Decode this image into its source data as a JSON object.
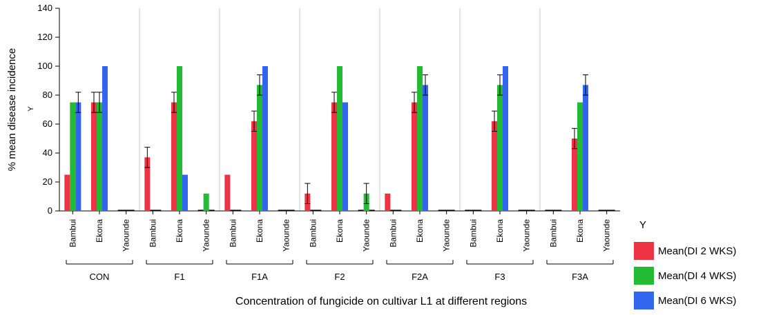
{
  "chart_data": {
    "type": "bar",
    "title": "",
    "xlabel": "Concentration of fungicide on cultivar L1 at different regions",
    "ylabel": "% mean disease incidence",
    "y_inner_label": "Y",
    "ylim": [
      0,
      140
    ],
    "yticks": [
      0,
      20,
      40,
      60,
      80,
      100,
      120,
      140
    ],
    "grid": "vertical separators between groups",
    "legend_position": "bottom-right",
    "legend_title": "Y",
    "groups": [
      "CON",
      "F1",
      "F1A",
      "F2",
      "F2A",
      "F3",
      "F3A"
    ],
    "categories": [
      "Bambui",
      "Ekona",
      "Yaounde"
    ],
    "series": [
      {
        "name": "Mean(DI 2 WKS)",
        "color": "#ee3344",
        "values": [
          [
            25,
            75,
            0
          ],
          [
            37,
            75,
            0
          ],
          [
            25,
            62,
            0
          ],
          [
            12,
            75,
            0
          ],
          [
            12,
            75,
            0
          ],
          [
            0,
            62,
            0
          ],
          [
            0,
            50,
            0
          ]
        ],
        "errors": [
          [
            0,
            7,
            0
          ],
          [
            7,
            7,
            0
          ],
          [
            0,
            7,
            0
          ],
          [
            7,
            7,
            0
          ],
          [
            0,
            7,
            0
          ],
          [
            0,
            7,
            0
          ],
          [
            0,
            7,
            0
          ]
        ]
      },
      {
        "name": "Mean(DI 4 WKS)",
        "color": "#22bb33",
        "values": [
          [
            75,
            75,
            0
          ],
          [
            0,
            100,
            12
          ],
          [
            0,
            87,
            0
          ],
          [
            0,
            100,
            12
          ],
          [
            0,
            100,
            0
          ],
          [
            0,
            87,
            0
          ],
          [
            0,
            75,
            0
          ]
        ],
        "errors": [
          [
            0,
            7,
            0
          ],
          [
            0,
            0,
            0
          ],
          [
            0,
            7,
            0
          ],
          [
            0,
            0,
            7
          ],
          [
            0,
            0,
            0
          ],
          [
            0,
            7,
            0
          ],
          [
            0,
            0,
            0
          ]
        ]
      },
      {
        "name": "Mean(DI 6 WKS)",
        "color": "#3366ee",
        "values": [
          [
            75,
            100,
            0
          ],
          [
            0,
            25,
            0
          ],
          [
            0,
            100,
            0
          ],
          [
            0,
            75,
            0
          ],
          [
            0,
            87,
            0
          ],
          [
            0,
            100,
            0
          ],
          [
            0,
            87,
            0
          ]
        ],
        "errors": [
          [
            7,
            0,
            0
          ],
          [
            0,
            0,
            0
          ],
          [
            0,
            0,
            0
          ],
          [
            0,
            0,
            0
          ],
          [
            0,
            7,
            0
          ],
          [
            0,
            0,
            0
          ],
          [
            0,
            7,
            0
          ]
        ]
      }
    ]
  }
}
